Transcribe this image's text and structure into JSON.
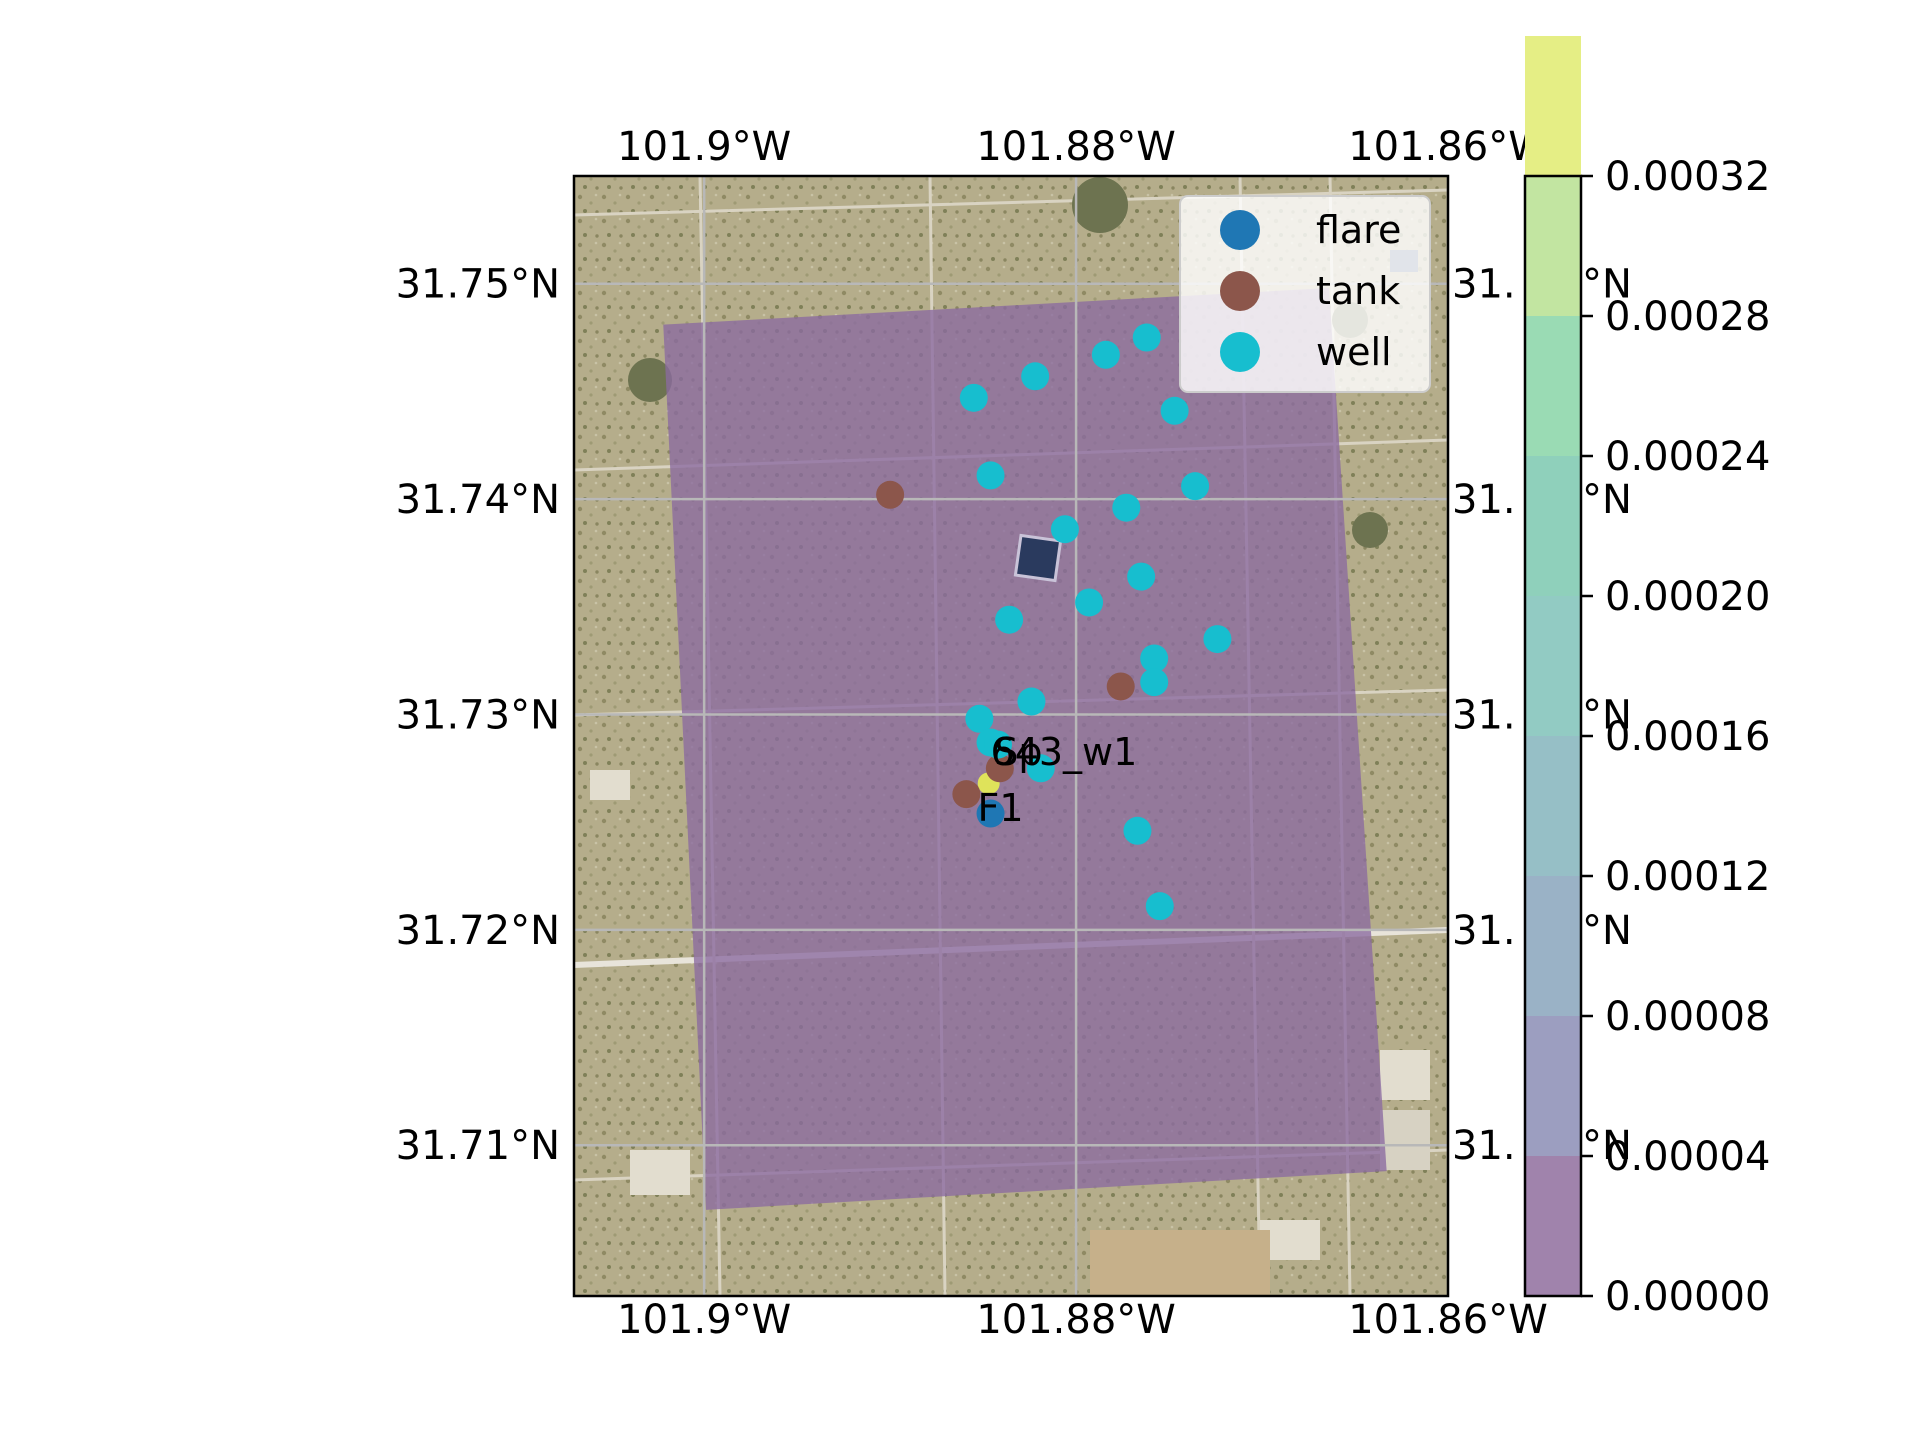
{
  "chart_data": {
    "type": "scatter",
    "title": "",
    "xlabel": "",
    "ylabel": "",
    "background": "satellite imagery (arid rangeland with pads, roads, ponds)",
    "projection": "PlateCarree",
    "xlim": [
      -101.907,
      -101.86
    ],
    "ylim": [
      31.703,
      31.755
    ],
    "grid": true,
    "x_ticks": [
      "101.9°W",
      "101.88°W",
      "101.86°W"
    ],
    "y_ticks_left": [
      "31.75°N",
      "31.74°N",
      "31.73°N",
      "31.72°N",
      "31.71°N"
    ],
    "y_ticks_right": [
      "31.",
      "31.",
      "31.",
      "31.",
      "31."
    ],
    "y_ticks_right_suffix": "°N",
    "concentration_field": {
      "color": "#8a6aa0",
      "opacity": 0.78,
      "corners_lonlat": [
        [
          -101.9022,
          31.7481
        ],
        [
          -101.8664,
          31.7498
        ],
        [
          -101.8633,
          31.7088
        ],
        [
          -101.8999,
          31.707
        ]
      ],
      "max_marker": {
        "lon": -101.8847,
        "lat": 31.7268,
        "color": "#dfe35a"
      }
    },
    "series": [
      {
        "name": "flare",
        "color": "#1f77b4",
        "points": [
          [
            -101.8846,
            31.7254
          ]
        ]
      },
      {
        "name": "tank",
        "color": "#8c564b",
        "points": [
          [
            -101.89,
            31.7402
          ],
          [
            -101.8776,
            31.7313
          ],
          [
            -101.8841,
            31.7275
          ],
          [
            -101.8859,
            31.7263
          ]
        ]
      },
      {
        "name": "well",
        "color": "#17becf",
        "points": [
          [
            -101.8855,
            31.7447
          ],
          [
            -101.8822,
            31.7457
          ],
          [
            -101.8784,
            31.7467
          ],
          [
            -101.8762,
            31.7475
          ],
          [
            -101.8747,
            31.7441
          ],
          [
            -101.8846,
            31.7411
          ],
          [
            -101.8736,
            31.7406
          ],
          [
            -101.8806,
            31.7386
          ],
          [
            -101.8773,
            31.7396
          ],
          [
            -101.8765,
            31.7364
          ],
          [
            -101.8793,
            31.7352
          ],
          [
            -101.8836,
            31.7344
          ],
          [
            -101.8724,
            31.7335
          ],
          [
            -101.8758,
            31.7326
          ],
          [
            -101.8758,
            31.7315
          ],
          [
            -101.8824,
            31.7306
          ],
          [
            -101.8852,
            31.7298
          ],
          [
            -101.8846,
            31.7287
          ],
          [
            -101.8842,
            31.7286
          ],
          [
            -101.8819,
            31.7275
          ],
          [
            -101.8767,
            31.7246
          ],
          [
            -101.8755,
            31.7211
          ]
        ]
      }
    ],
    "annotations": [
      {
        "text": "643_w1",
        "lon": -101.8846,
        "lat": 31.7283
      },
      {
        "text": "Sp",
        "lon": -101.8844,
        "lat": 31.7283
      },
      {
        "text": "F1",
        "lon": -101.8853,
        "lat": 31.7257
      }
    ],
    "legend": {
      "placement": "top-right",
      "entries": [
        "flare",
        "tank",
        "well"
      ]
    },
    "colorbar": {
      "min": 0.0,
      "max": 0.00032,
      "ticks": [
        "0.00000",
        "0.00004",
        "0.00008",
        "0.00012",
        "0.00016",
        "0.00020",
        "0.00024",
        "0.00028",
        "0.00032"
      ],
      "band_colors": [
        "#a083ac",
        "#9c9ec0",
        "#9ab2c6",
        "#96bfc6",
        "#92cbc3",
        "#8fd0bb",
        "#9adbb4",
        "#c2e5a1",
        "#e5ee85"
      ]
    }
  }
}
